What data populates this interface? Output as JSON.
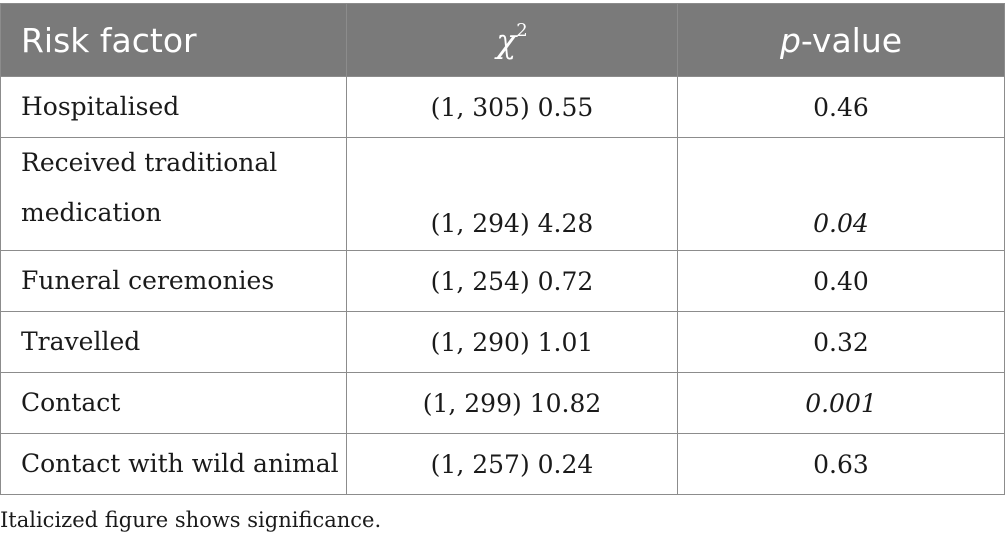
{
  "header": {
    "col1": "Risk factor",
    "col2_symbol": "χ",
    "col2_sup": "2",
    "col3_italic": "p",
    "col3_rest": "-value"
  },
  "rows": [
    {
      "factor": "Hospitalised",
      "chi": "(1, 305) 0.55",
      "p": "0.46",
      "p_italic": false
    },
    {
      "factor_line1": "Received traditional",
      "factor_line2": "medication",
      "chi": "(1, 294) 4.28",
      "p": "0.04",
      "p_italic": true
    },
    {
      "factor": "Funeral ceremonies",
      "chi": "(1, 254) 0.72",
      "p": "0.40",
      "p_italic": false
    },
    {
      "factor": "Travelled",
      "chi": "(1, 290) 1.01",
      "p": "0.32",
      "p_italic": false
    },
    {
      "factor": "Contact",
      "chi": "(1, 299) 10.82",
      "p": "0.001",
      "p_italic": true
    },
    {
      "factor": "Contact with wild animal",
      "chi": "(1, 257) 0.24",
      "p": "0.63",
      "p_italic": false
    }
  ],
  "footnote": "Italicized figure shows significance."
}
